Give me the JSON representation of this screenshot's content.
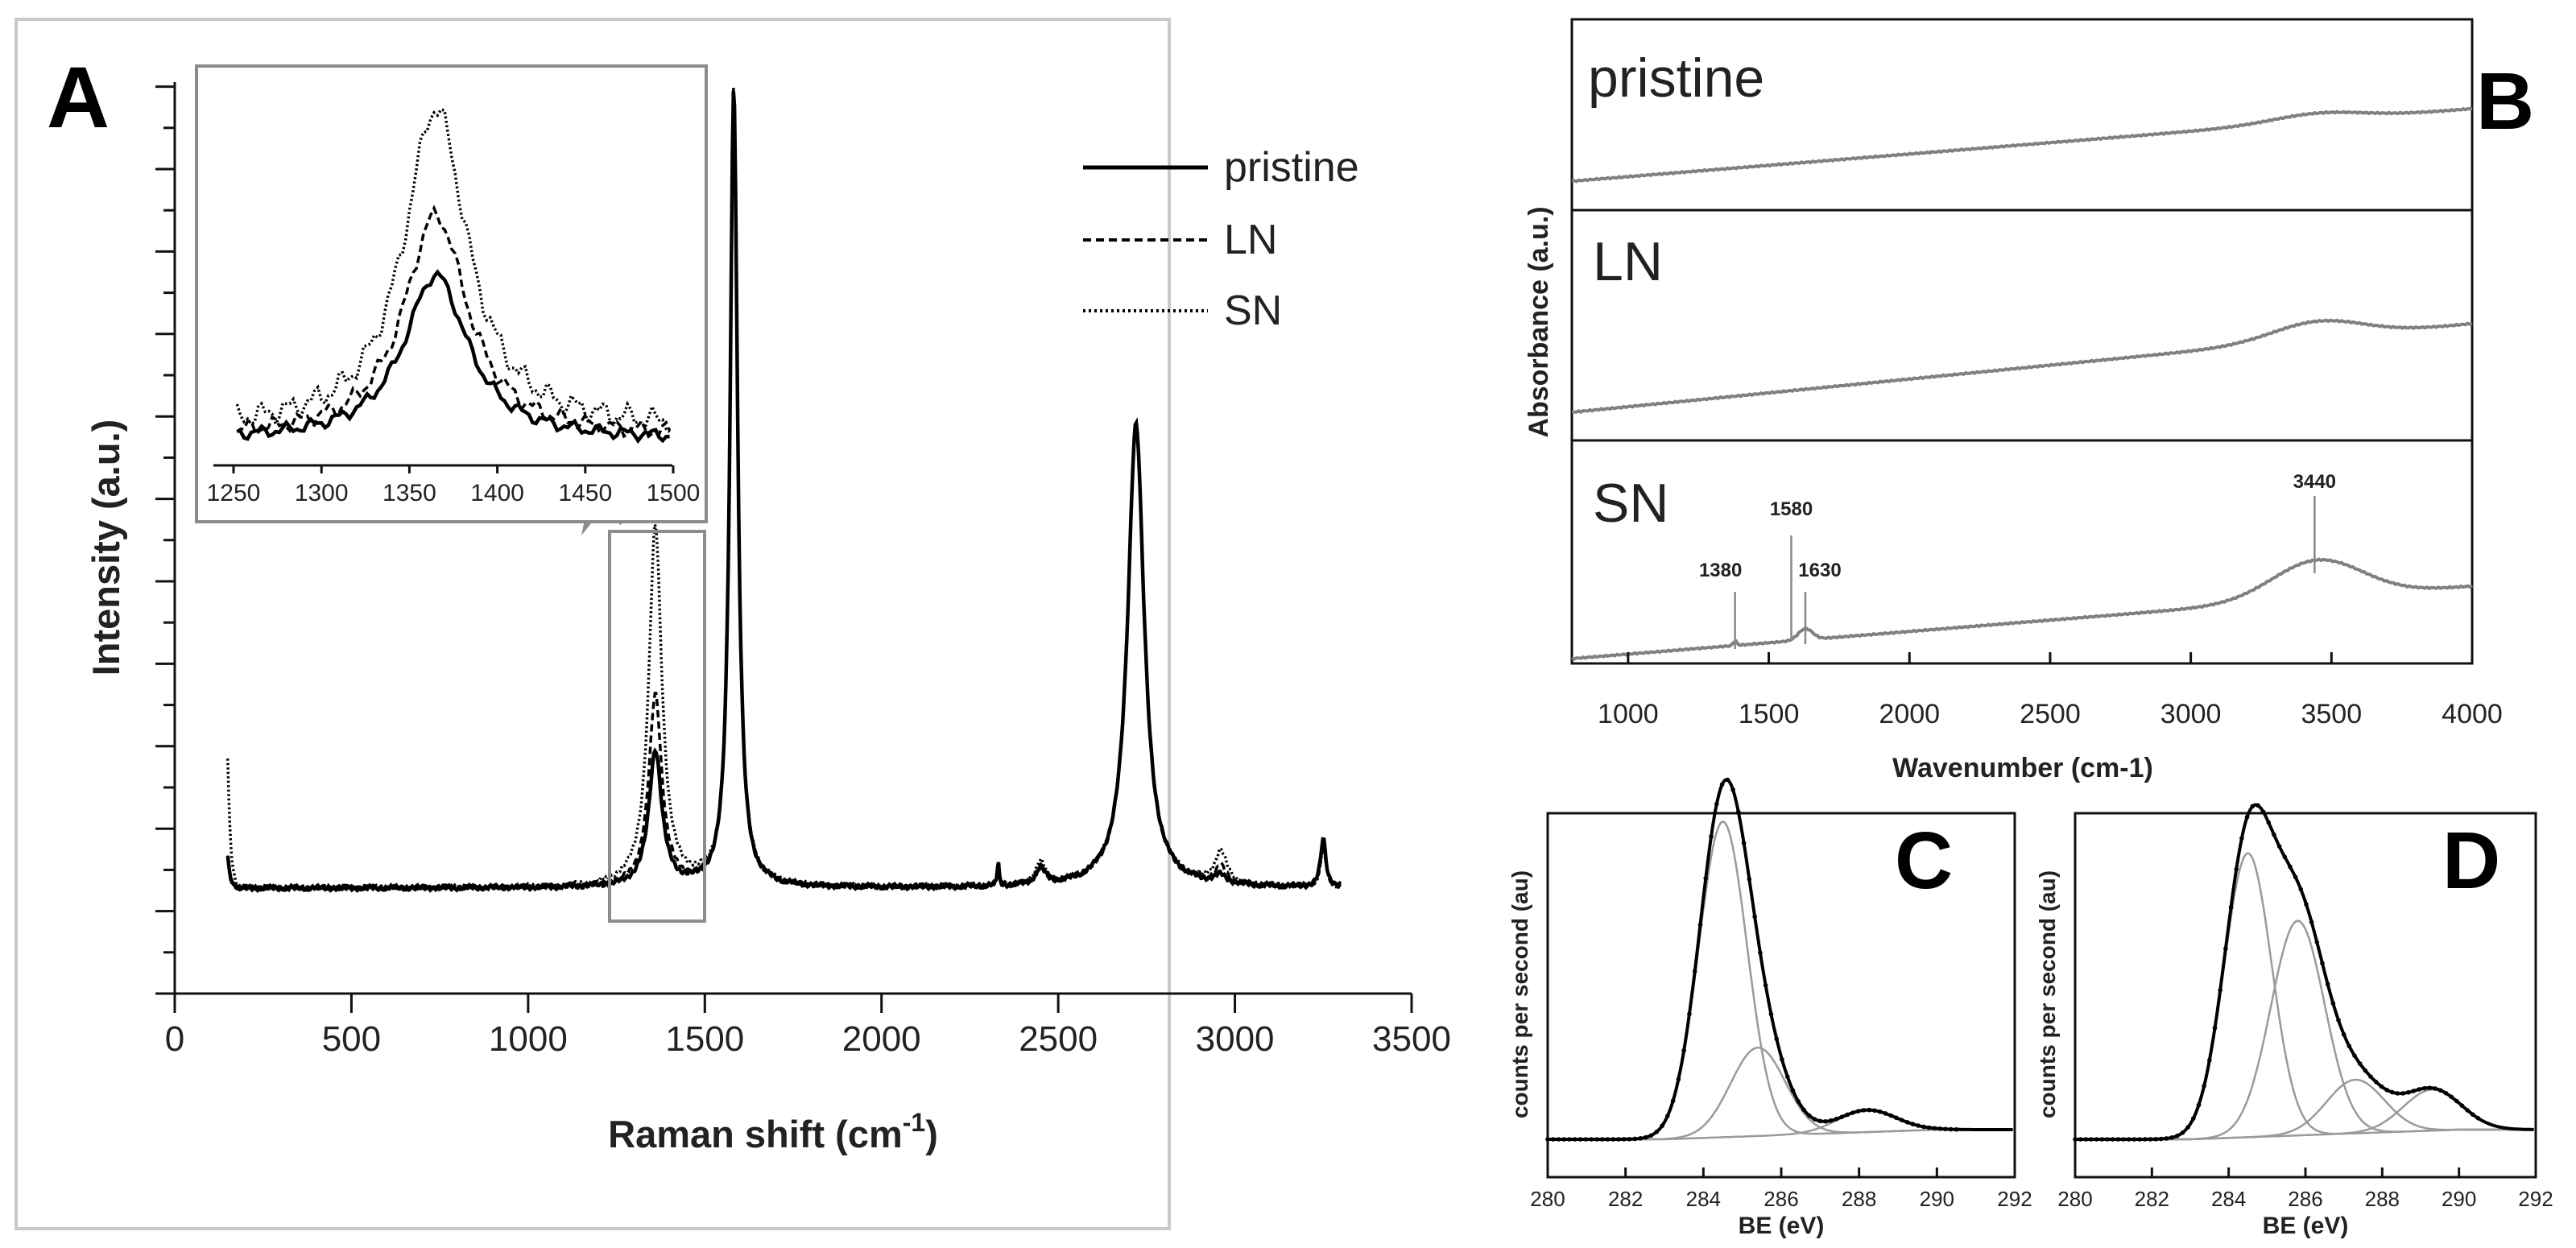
{
  "chart_data": [
    {
      "panel": "A",
      "type": "line",
      "xlabel": "Raman shift (cm",
      "xlabel_sup": "-1",
      "xlabel_tail": ")",
      "ylabel": "Intensity (a.u.)",
      "xlim": [
        0,
        3500
      ],
      "xticks": [
        "0",
        "500",
        "1000",
        "1500",
        "2000",
        "2500",
        "3000",
        "3500"
      ],
      "legend": [
        "pristine",
        "LN",
        "SN"
      ],
      "series": [
        {
          "name": "pristine",
          "peaks": [
            [
              1360,
              0.17
            ],
            [
              1582,
              1.0
            ],
            [
              2330,
              0.03
            ],
            [
              2450,
              0.02
            ],
            [
              2720,
              0.58
            ],
            [
              2960,
              0.01
            ],
            [
              3250,
              0.06
            ]
          ]
        },
        {
          "name": "LN",
          "peaks": [
            [
              1360,
              0.24
            ],
            [
              1582,
              1.0
            ],
            [
              2330,
              0.03
            ],
            [
              2450,
              0.02
            ],
            [
              2720,
              0.58
            ],
            [
              2960,
              0.02
            ],
            [
              3250,
              0.05
            ]
          ]
        },
        {
          "name": "SN",
          "peaks": [
            [
              1360,
              0.45
            ],
            [
              1582,
              1.0
            ],
            [
              2330,
              0.03
            ],
            [
              2450,
              0.03
            ],
            [
              2720,
              0.58
            ],
            [
              2960,
              0.04
            ],
            [
              3250,
              0.05
            ]
          ]
        }
      ],
      "inset": {
        "xlim": [
          1250,
          1500
        ],
        "xticks": [
          "1250",
          "1300",
          "1350",
          "1400",
          "1450",
          "1500"
        ]
      }
    },
    {
      "panel": "B",
      "type": "line",
      "xlabel": "Wavenumber (cm-1)",
      "ylabel": "Absorbance (a.u.)",
      "xlim": [
        800,
        4000
      ],
      "xticks": [
        "1000",
        "1500",
        "2000",
        "2500",
        "3000",
        "3500",
        "4000"
      ],
      "stack": [
        "pristine",
        "LN",
        "SN"
      ],
      "annotations": [
        "1380",
        "1580",
        "1630",
        "3440"
      ]
    },
    {
      "panel": "C",
      "type": "line",
      "xlabel": "BE (eV)",
      "ylabel": "counts per second (au)",
      "xlim": [
        280,
        292
      ],
      "xticks": [
        "280",
        "282",
        "284",
        "286",
        "288",
        "290",
        "292"
      ],
      "components": [
        [
          284.5,
          1.0
        ],
        [
          285.4,
          0.28
        ],
        [
          288.2,
          0.07
        ]
      ]
    },
    {
      "panel": "D",
      "type": "line",
      "xlabel": "BE (eV)",
      "ylabel": "counts per second (au)",
      "xlim": [
        280,
        292
      ],
      "xticks": [
        "280",
        "282",
        "284",
        "286",
        "288",
        "290",
        "292"
      ],
      "components": [
        [
          284.5,
          0.9
        ],
        [
          285.8,
          0.68
        ],
        [
          287.3,
          0.17
        ],
        [
          289.3,
          0.13
        ]
      ]
    }
  ]
}
